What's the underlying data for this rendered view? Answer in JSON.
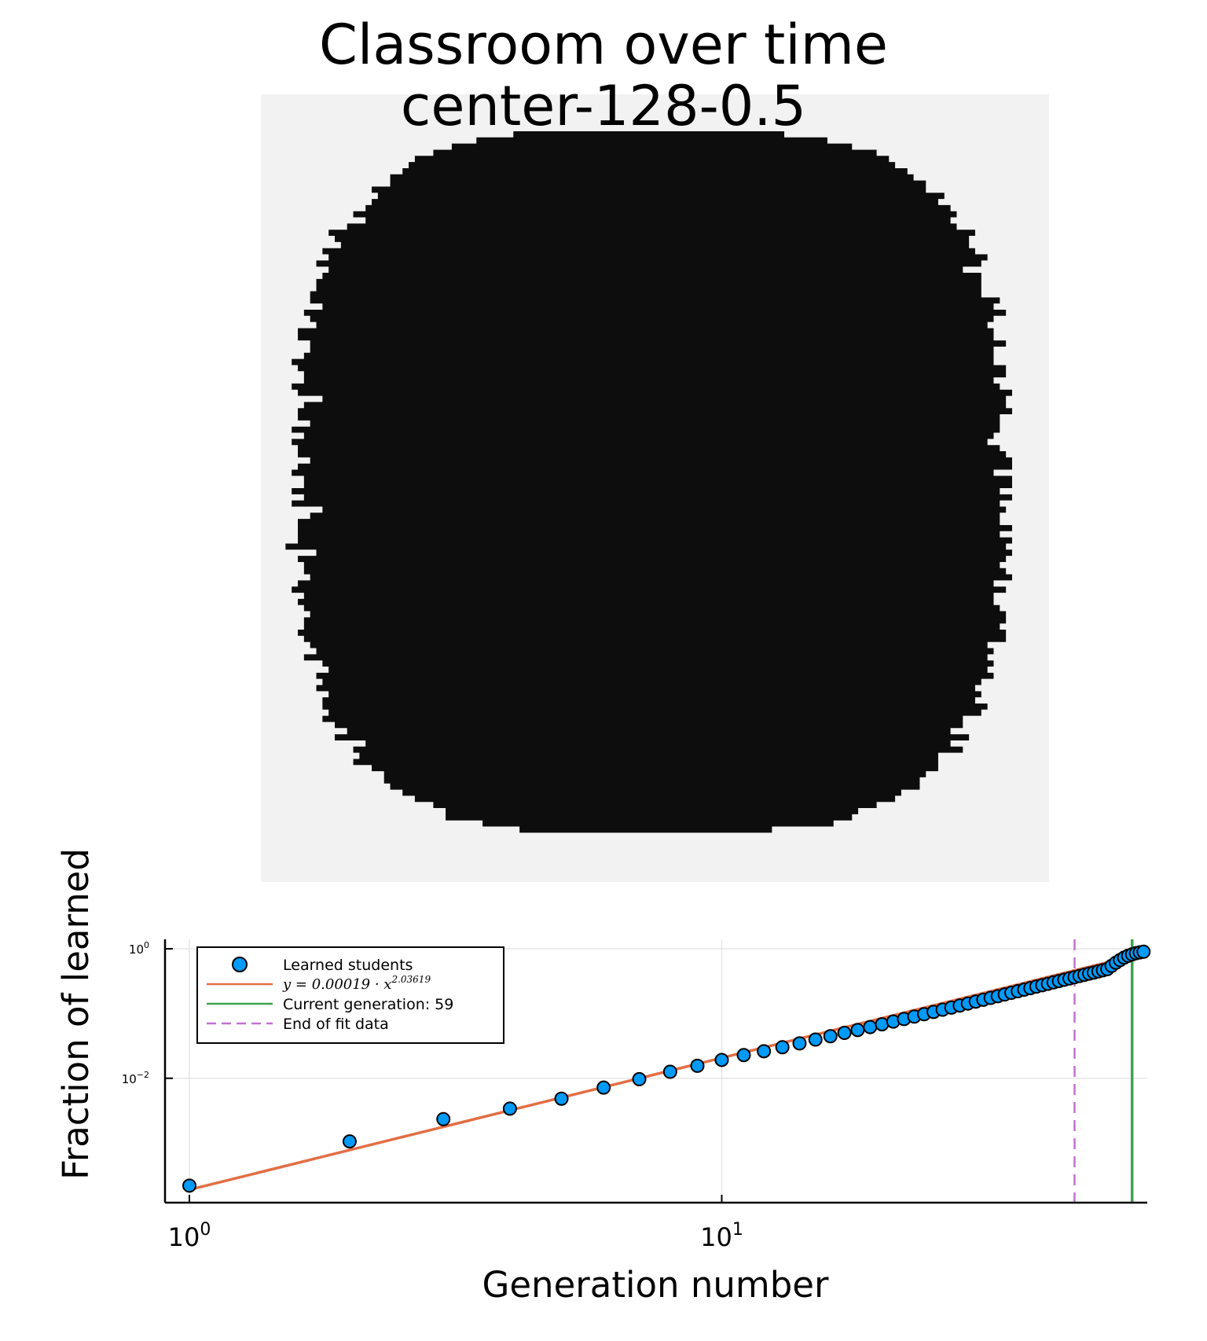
{
  "chart_data": [
    {
      "type": "heatmap",
      "title": "Classroom over time",
      "subtitle": "center-128-0.5",
      "grid_size": 128,
      "colors": {
        "learned": "#0d0d0d",
        "not_learned": "#f2f2f2"
      },
      "approx_learned_fraction": 0.78
    },
    {
      "type": "scatter",
      "xlabel": "Generation number",
      "ylabel": "Fraction of learned",
      "xscale": "log",
      "yscale": "log",
      "xlim": [
        0.9,
        63
      ],
      "ylim": [
        0.00012,
        1.4
      ],
      "x_ticks": [
        {
          "value": 1,
          "base": "10",
          "exp": "0"
        },
        {
          "value": 10,
          "base": "10",
          "exp": "1"
        }
      ],
      "y_ticks": [
        {
          "value": 1,
          "base": "10",
          "exp": "0"
        },
        {
          "value": 0.01,
          "base": "10",
          "exp": "−2"
        }
      ],
      "grid": true,
      "legend_position": "top-left",
      "series": [
        {
          "name": "Learned students",
          "kind": "scatter",
          "color": "#009af9",
          "x": [
            1,
            2,
            3,
            4,
            5,
            6,
            7,
            8,
            9,
            10,
            11,
            12,
            13,
            14,
            15,
            16,
            17,
            18,
            19,
            20,
            21,
            22,
            23,
            24,
            25,
            26,
            27,
            28,
            29,
            30,
            31,
            32,
            33,
            34,
            35,
            36,
            37,
            38,
            39,
            40,
            41,
            42,
            43,
            44,
            45,
            46,
            47,
            48,
            49,
            50,
            51,
            52,
            53,
            54,
            55,
            56,
            57,
            58,
            59,
            60,
            61,
            62
          ],
          "y": [
            0.00022,
            0.00106,
            0.00234,
            0.0034,
            0.00484,
            0.00717,
            0.0097,
            0.0126,
            0.0156,
            0.0192,
            0.0228,
            0.0262,
            0.0302,
            0.0346,
            0.0396,
            0.0446,
            0.0502,
            0.0557,
            0.0617,
            0.0682,
            0.0751,
            0.0823,
            0.0898,
            0.0977,
            0.1059,
            0.1146,
            0.1236,
            0.133,
            0.1427,
            0.1529,
            0.1634,
            0.1742,
            0.1854,
            0.1969,
            0.2089,
            0.2212,
            0.2338,
            0.2469,
            0.2603,
            0.274,
            0.288,
            0.3025,
            0.3174,
            0.3326,
            0.348,
            0.364,
            0.38,
            0.396,
            0.413,
            0.43,
            0.448,
            0.466,
            0.485,
            0.545,
            0.61,
            0.67,
            0.73,
            0.78,
            0.82,
            0.855,
            0.88,
            0.9
          ]
        },
        {
          "name": "y = 0.00019 · x^2.03619",
          "name_base": "y = 0.00019 · x",
          "name_exp": "2.03619",
          "kind": "line",
          "color": "#e26f46",
          "coefficient": 0.00019,
          "exponent": 2.03619,
          "x_range": [
            1,
            62
          ]
        },
        {
          "name": "Current generation: 59",
          "kind": "vline",
          "color": "#3da44d",
          "x": 59
        },
        {
          "name": "End of fit data",
          "kind": "vline-dashed",
          "color": "#c271d2",
          "x": 46
        }
      ]
    }
  ]
}
